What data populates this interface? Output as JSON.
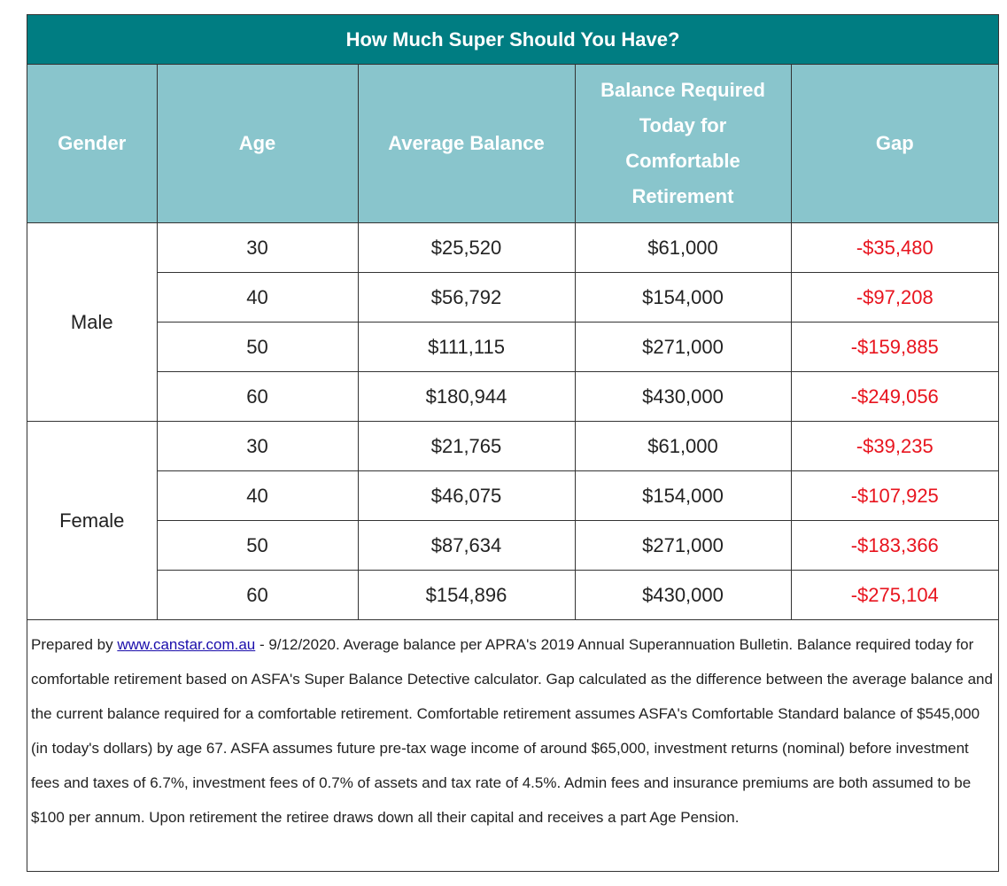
{
  "title": "How Much Super Should You Have?",
  "columns": {
    "gender": "Gender",
    "age": "Age",
    "average_balance": "Average Balance",
    "balance_required": "Balance Required Today for Comfortable Retirement",
    "gap": "Gap"
  },
  "groups": [
    {
      "gender": "Male",
      "rows": [
        {
          "age": "30",
          "average": "$25,520",
          "required": "$61,000",
          "gap": "-$35,480"
        },
        {
          "age": "40",
          "average": "$56,792",
          "required": "$154,000",
          "gap": "-$97,208"
        },
        {
          "age": "50",
          "average": "$111,115",
          "required": "$271,000",
          "gap": "-$159,885"
        },
        {
          "age": "60",
          "average": "$180,944",
          "required": "$430,000",
          "gap": "-$249,056"
        }
      ]
    },
    {
      "gender": "Female",
      "rows": [
        {
          "age": "30",
          "average": "$21,765",
          "required": "$61,000",
          "gap": "-$39,235"
        },
        {
          "age": "40",
          "average": "$46,075",
          "required": "$154,000",
          "gap": "-$107,925"
        },
        {
          "age": "50",
          "average": "$87,634",
          "required": "$271,000",
          "gap": "-$183,366"
        },
        {
          "age": "60",
          "average": "$154,896",
          "required": "$430,000",
          "gap": "-$275,104"
        }
      ]
    }
  ],
  "note": {
    "prefix": "Prepared by ",
    "link_text": "www.canstar.com.au",
    "body": " - 9/12/2020. Average balance per APRA's 2019 Annual Superannuation Bulletin. Balance required today for comfortable retirement based on ASFA's Super Balance Detective calculator. Gap calculated as the difference between the average balance and the current balance required for a comfortable retirement. Comfortable retirement assumes ASFA's Comfortable Standard balance of $545,000 (in today's dollars) by age 67. ASFA assumes future pre-tax wage income of around $65,000, investment returns (nominal) before investment fees and taxes of 6.7%, investment fees of 0.7% of assets and tax rate of 4.5%. Admin fees and insurance premiums are both assumed to be $100 per annum. Upon retirement the retiree draws down all their capital and receives a part Age Pension."
  },
  "colors": {
    "title_bg": "#007d82",
    "header_bg": "#89c5cc",
    "gap_text": "#e8141e"
  }
}
